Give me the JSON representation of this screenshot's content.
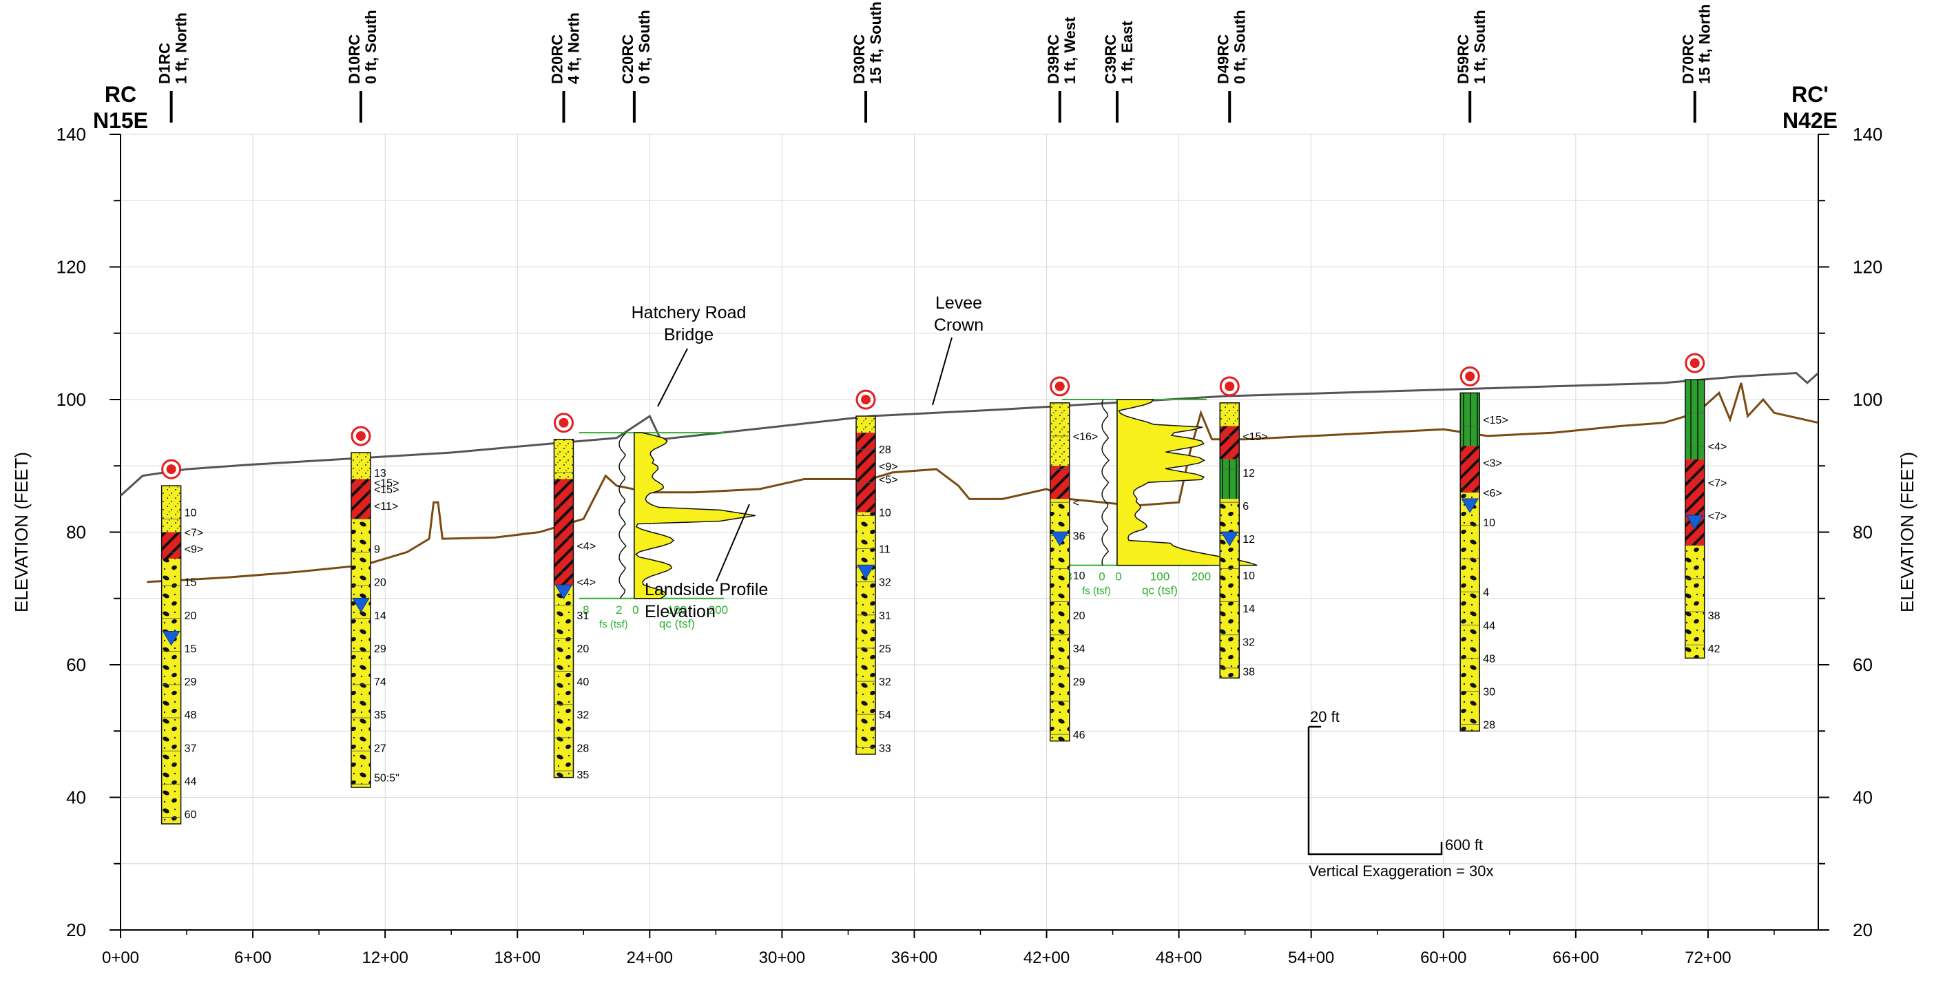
{
  "section": {
    "left_label": [
      "RC",
      "N15E"
    ],
    "right_label": [
      "RC'",
      "N42E"
    ],
    "y_axis_title": "ELEVATION (FEET)",
    "y_ticks": [
      140,
      120,
      100,
      80,
      60,
      40,
      20
    ],
    "y_range": [
      20,
      140
    ],
    "x_ticks": [
      "0+00",
      "6+00",
      "12+00",
      "18+00",
      "24+00",
      "30+00",
      "36+00",
      "42+00",
      "48+00",
      "54+00",
      "60+00",
      "66+00",
      "72+00"
    ],
    "x_range_ft": [
      0,
      7700
    ]
  },
  "annotations": {
    "bridge": [
      "Hatchery Road",
      "Bridge"
    ],
    "levee": [
      "Levee",
      "Crown"
    ],
    "landside": [
      "Landside Profile",
      "Elevation"
    ]
  },
  "scale_bar": {
    "vertical": "20 ft",
    "horizontal": "600 ft",
    "exaggeration": "Vertical Exaggeration = 30x"
  },
  "colors": {
    "sand": "#f4ef1e",
    "clay": "#e32020",
    "silt": "#2e9e2e",
    "water": "#1560d8",
    "levee": "#555555",
    "landside": "#7a4a12",
    "cpt": "#2db02d",
    "cpt_fill": "#f7f01a",
    "grid": "#d8d8d8",
    "axis": "#000000"
  },
  "borings": [
    {
      "id": "D1RC",
      "offset": "1 ft, North",
      "station_ft": 230,
      "top": 87,
      "bottom": 36,
      "water": 64,
      "layers": [
        {
          "from": 87,
          "to": 80,
          "type": "sand"
        },
        {
          "from": 80,
          "to": 76,
          "type": "clay"
        },
        {
          "from": 76,
          "to": 36,
          "type": "sand"
        }
      ],
      "blows": [
        [
          "10",
          83
        ],
        [
          "<7>",
          80
        ],
        [
          "<9>",
          77.5
        ],
        [
          "15",
          72.5
        ],
        [
          "20",
          67.5
        ],
        [
          "15",
          62.5
        ],
        [
          "29",
          57.5
        ],
        [
          "48",
          52.5
        ],
        [
          "37",
          47.5
        ],
        [
          "44",
          42.5
        ],
        [
          "60",
          37.5
        ]
      ]
    },
    {
      "id": "D10RC",
      "offset": "0 ft, South",
      "station_ft": 1090,
      "top": 92,
      "bottom": 41.5,
      "water": 69,
      "layers": [
        {
          "from": 92,
          "to": 88,
          "type": "sand"
        },
        {
          "from": 88,
          "to": 82,
          "type": "clay"
        },
        {
          "from": 82,
          "to": 41.5,
          "type": "sand"
        }
      ],
      "blows": [
        [
          "13",
          89
        ],
        [
          "<15>",
          87.5
        ],
        [
          "<15>",
          86.5
        ],
        [
          "<11>",
          84
        ],
        [
          "9",
          77.5
        ],
        [
          "20",
          72.5
        ],
        [
          "14",
          67.5
        ],
        [
          "29",
          62.5
        ],
        [
          "74",
          57.5
        ],
        [
          "35",
          52.5
        ],
        [
          "27",
          47.5
        ],
        [
          "50:5\"",
          43
        ]
      ]
    },
    {
      "id": "D20RC",
      "offset": "4 ft, North",
      "station_ft": 2010,
      "top": 94,
      "bottom": 43,
      "water": 71,
      "layers": [
        {
          "from": 94,
          "to": 88,
          "type": "sand"
        },
        {
          "from": 88,
          "to": 72,
          "type": "clay"
        },
        {
          "from": 72,
          "to": 43,
          "type": "sand"
        }
      ],
      "blows": [
        [
          "<4>",
          78
        ],
        [
          "<4>",
          72.5
        ],
        [
          "31",
          67.5
        ],
        [
          "20",
          62.5
        ],
        [
          "40",
          57.5
        ],
        [
          "32",
          52.5
        ],
        [
          "28",
          47.5
        ],
        [
          "35",
          43.5
        ]
      ]
    },
    {
      "id": "C20RC",
      "offset": "0 ft, South",
      "station_ft": 2330,
      "top": null
    },
    {
      "id": "D30RC",
      "offset": "15 ft, South",
      "station_ft": 3380,
      "top": 97.5,
      "bottom": 46.5,
      "water": 74,
      "layers": [
        {
          "from": 97.5,
          "to": 95,
          "type": "sand"
        },
        {
          "from": 95,
          "to": 83,
          "type": "clay"
        },
        {
          "from": 83,
          "to": 46.5,
          "type": "sand"
        }
      ],
      "blows": [
        [
          "28",
          92.5
        ],
        [
          "<9>",
          90
        ],
        [
          "<5>",
          88
        ],
        [
          "10",
          83
        ],
        [
          "11",
          77.5
        ],
        [
          "32",
          72.5
        ],
        [
          "31",
          67.5
        ],
        [
          "25",
          62.5
        ],
        [
          "32",
          57.5
        ],
        [
          "54",
          52.5
        ],
        [
          "33",
          47.5
        ]
      ]
    },
    {
      "id": "D39RC",
      "offset": "1 ft, West",
      "station_ft": 4260,
      "top": 99.5,
      "bottom": 48.5,
      "water": 79,
      "layers": [
        {
          "from": 99.5,
          "to": 90,
          "type": "sand"
        },
        {
          "from": 90,
          "to": 85,
          "type": "clay"
        },
        {
          "from": 85,
          "to": 48.5,
          "type": "sand"
        }
      ],
      "blows": [
        [
          "<16>",
          94.5
        ],
        [
          "<",
          84.5
        ],
        [
          "36",
          79.5
        ],
        [
          "10",
          73.5
        ],
        [
          "20",
          67.5
        ],
        [
          "34",
          62.5
        ],
        [
          "29",
          57.5
        ],
        [
          "46",
          49.5
        ]
      ]
    },
    {
      "id": "C39RC",
      "offset": "1 ft, East",
      "station_ft": 4520,
      "top": null
    },
    {
      "id": "D49RC",
      "offset": "0 ft, South",
      "station_ft": 5030,
      "top": 99.5,
      "bottom": 58,
      "water": 79,
      "layers": [
        {
          "from": 99.5,
          "to": 96,
          "type": "sand"
        },
        {
          "from": 96,
          "to": 91,
          "type": "clay"
        },
        {
          "from": 91,
          "to": 85,
          "type": "silt"
        },
        {
          "from": 85,
          "to": 58,
          "type": "sand"
        }
      ],
      "blows": [
        [
          "<15>",
          94.5
        ],
        [
          "12",
          89
        ],
        [
          "6",
          84
        ],
        [
          "12",
          79
        ],
        [
          "10",
          73.5
        ],
        [
          "14",
          68.5
        ],
        [
          "32",
          63.5
        ],
        [
          "38",
          59
        ]
      ]
    },
    {
      "id": "D59RC",
      "offset": "1 ft, South",
      "station_ft": 6120,
      "top": 101,
      "bottom": 50,
      "water": 84,
      "layers": [
        {
          "from": 101,
          "to": 93,
          "type": "silt"
        },
        {
          "from": 93,
          "to": 86,
          "type": "clay"
        },
        {
          "from": 86,
          "to": 50,
          "type": "sand"
        }
      ],
      "blows": [
        [
          "<15>",
          97
        ],
        [
          "<3>",
          90.5
        ],
        [
          "<6>",
          86
        ],
        [
          "10",
          81.5
        ],
        [
          "4",
          71
        ],
        [
          "44",
          66
        ],
        [
          "48",
          61
        ],
        [
          "30",
          56
        ],
        [
          "28",
          51
        ]
      ]
    },
    {
      "id": "D70RC",
      "offset": "15 ft, North",
      "station_ft": 7140,
      "top": 103,
      "bottom": 61,
      "water": 81.5,
      "layers": [
        {
          "from": 103,
          "to": 91,
          "type": "silt"
        },
        {
          "from": 91,
          "to": 78,
          "type": "clay"
        },
        {
          "from": 78,
          "to": 61,
          "type": "sand"
        }
      ],
      "blows": [
        [
          "<4>",
          93
        ],
        [
          "<7>",
          87.5
        ],
        [
          "<7>",
          82.5
        ],
        [
          "38",
          67.5
        ],
        [
          "42",
          62.5
        ]
      ]
    }
  ],
  "cpt": [
    {
      "id": "C20RC",
      "station_ft": 2330,
      "top": 95,
      "ticks": [
        "8",
        "2",
        "0",
        "100",
        "200"
      ],
      "axis_label": "qc (tsf)",
      "fs_label": "fs (tsf)"
    },
    {
      "id": "C39RC",
      "station_ft": 4520,
      "top": 100,
      "ticks": [
        "8",
        "0",
        "0",
        "100",
        "200"
      ],
      "axis_label": "qc (tsf)",
      "fs_label": "fs (tsf)"
    }
  ],
  "levee_crown": [
    [
      0,
      85.5
    ],
    [
      100,
      88.5
    ],
    [
      300,
      89.5
    ],
    [
      600,
      90.2
    ],
    [
      1000,
      91
    ],
    [
      1500,
      92
    ],
    [
      2000,
      93.5
    ],
    [
      2250,
      94.2
    ],
    [
      2400,
      97.5
    ],
    [
      2450,
      94
    ],
    [
      3000,
      96
    ],
    [
      3400,
      97.5
    ],
    [
      4000,
      98.5
    ],
    [
      4500,
      99.5
    ],
    [
      5000,
      100.5
    ],
    [
      5500,
      101
    ],
    [
      6000,
      101.5
    ],
    [
      6500,
      102
    ],
    [
      7000,
      102.5
    ],
    [
      7350,
      103.5
    ],
    [
      7600,
      104
    ],
    [
      7650,
      102.5
    ],
    [
      7700,
      104
    ]
  ],
  "landside": [
    [
      120,
      72.5
    ],
    [
      300,
      72.8
    ],
    [
      500,
      73.2
    ],
    [
      800,
      74
    ],
    [
      1100,
      75
    ],
    [
      1300,
      77
    ],
    [
      1400,
      79
    ],
    [
      1420,
      84.5
    ],
    [
      1440,
      84.5
    ],
    [
      1460,
      79
    ],
    [
      1700,
      79.2
    ],
    [
      1900,
      80
    ],
    [
      2100,
      82
    ],
    [
      2200,
      88.5
    ],
    [
      2250,
      87
    ],
    [
      2400,
      86
    ],
    [
      2600,
      86
    ],
    [
      2900,
      86.5
    ],
    [
      3100,
      88
    ],
    [
      3400,
      88
    ],
    [
      3500,
      89
    ],
    [
      3700,
      89.5
    ],
    [
      3800,
      87
    ],
    [
      3850,
      85
    ],
    [
      4000,
      85
    ],
    [
      4200,
      86.5
    ],
    [
      4300,
      85
    ],
    [
      4600,
      84
    ],
    [
      4800,
      84.5
    ],
    [
      4850,
      92
    ],
    [
      4900,
      98
    ],
    [
      4950,
      94
    ],
    [
      5100,
      94
    ],
    [
      5400,
      94.5
    ],
    [
      5700,
      95
    ],
    [
      6000,
      95.5
    ],
    [
      6200,
      94.5
    ],
    [
      6500,
      95
    ],
    [
      6800,
      96
    ],
    [
      7000,
      96.5
    ],
    [
      7150,
      98
    ],
    [
      7250,
      101
    ],
    [
      7300,
      97
    ],
    [
      7350,
      102.5
    ],
    [
      7380,
      97.5
    ],
    [
      7450,
      100
    ],
    [
      7500,
      98
    ],
    [
      7700,
      96.5
    ]
  ]
}
